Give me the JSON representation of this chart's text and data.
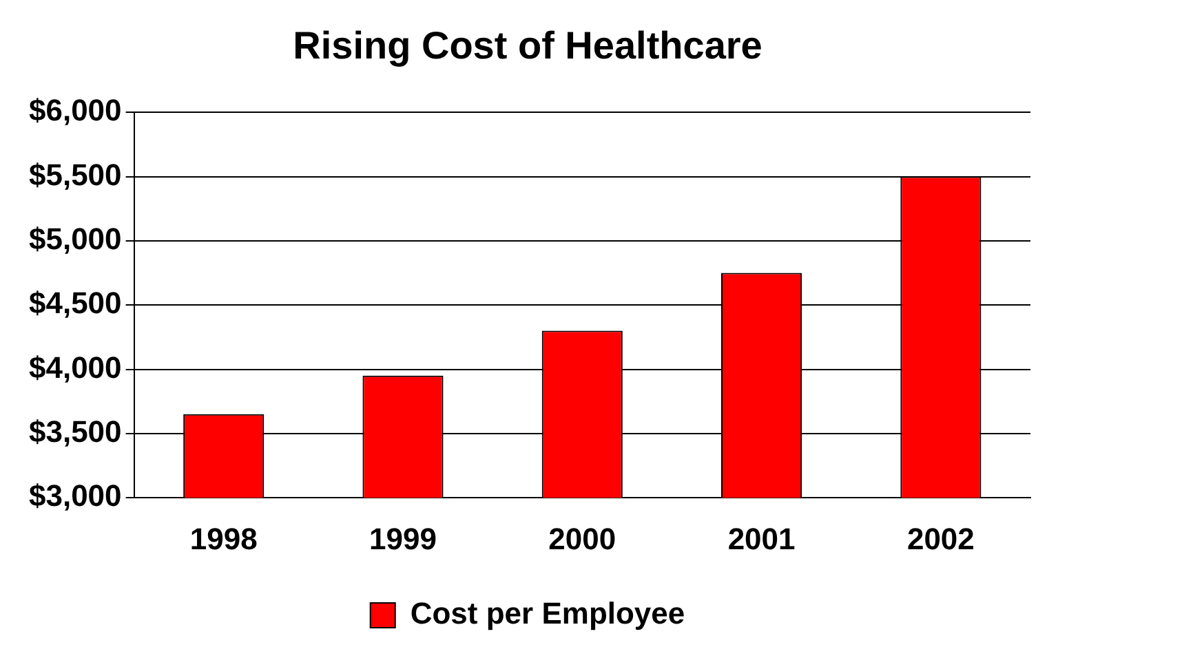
{
  "chart_data": {
    "type": "bar",
    "title": "Rising Cost of Healthcare",
    "categories": [
      "1998",
      "1999",
      "2000",
      "2001",
      "2002"
    ],
    "series": [
      {
        "name": "Cost per Employee",
        "color": "#ff0000",
        "values": [
          3650,
          3950,
          4300,
          4750,
          5500
        ]
      }
    ],
    "ylim": [
      3000,
      6000
    ],
    "yticks": [
      {
        "value": 3000,
        "label": "$3,000"
      },
      {
        "value": 3500,
        "label": "$3,500"
      },
      {
        "value": 4000,
        "label": "$4,000"
      },
      {
        "value": 4500,
        "label": "$4,500"
      },
      {
        "value": 5000,
        "label": "$5,000"
      },
      {
        "value": 5500,
        "label": "$5,500"
      },
      {
        "value": 6000,
        "label": "$6,000"
      }
    ],
    "grid": "y",
    "legend": "bottom"
  }
}
